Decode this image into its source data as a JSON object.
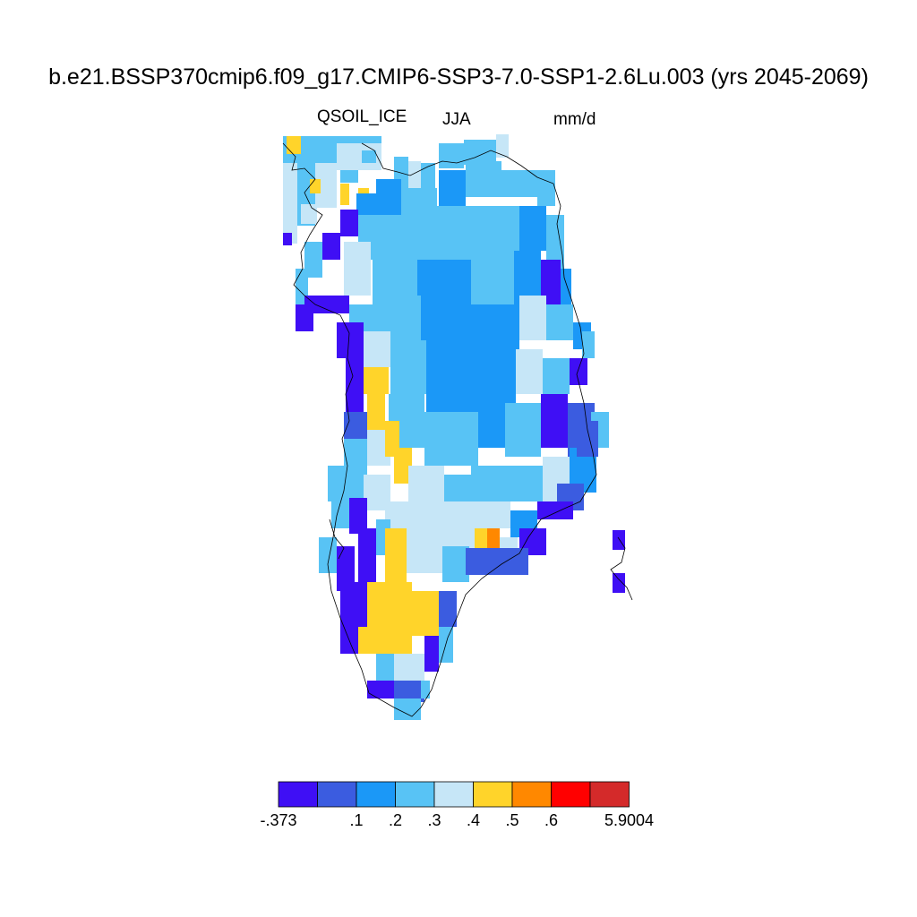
{
  "title": "b.e21.BSSP370cmip6.f09_g17.CMIP6-SSP3-7.0-SSP1-2.6Lu.003 (yrs 2045-2069)",
  "left_label": "QSOIL_ICE",
  "center_label": "JJA",
  "right_label": "mm/d",
  "colorbar": {
    "colors": [
      "#3f0ff5",
      "#3b5ce0",
      "#1b98f7",
      "#58c3f5",
      "#c6e6f7",
      "#ffd42a",
      "#ff8800",
      "#ff0000",
      "#d42a2a"
    ],
    "labels": [
      "-.373",
      ".1",
      ".2",
      ".3",
      ".4",
      ".5",
      ".6",
      "5.9004"
    ]
  },
  "map_legend": {
    "levels": [
      "-.373",
      ".1",
      ".2",
      ".3",
      ".4",
      ".5",
      ".6",
      "5.9004"
    ]
  }
}
